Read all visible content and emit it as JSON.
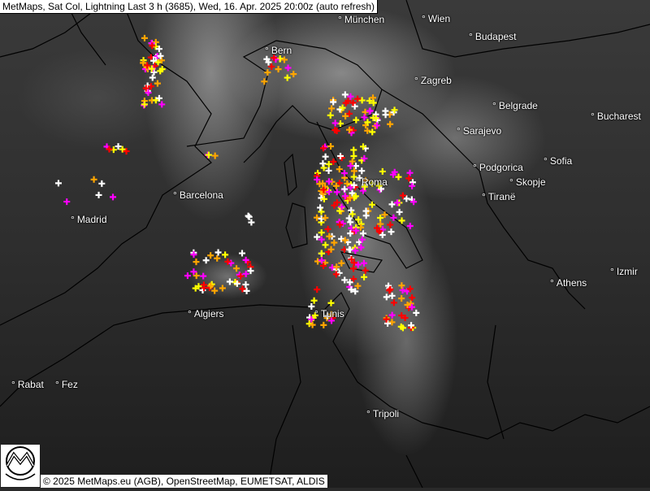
{
  "title": "MetMaps, Sat Col, Lightning Last 3 h (3685), Wed, 16. Apr. 2025 20:00z (auto refresh)",
  "copyright": "© 2025 MetMaps.eu (AGB), OpenStreetMap, EUMETSAT, ALDIS",
  "logo_text": "METMAPS",
  "lightning_colors": [
    "#ffffff",
    "#ffff00",
    "#ffa500",
    "#ff0000",
    "#ff00ff"
  ],
  "cities": [
    {
      "name": "München"
    },
    {
      "name": "Wien"
    },
    {
      "name": "Bern"
    },
    {
      "name": "Budapest"
    },
    {
      "name": "Zagreb"
    },
    {
      "name": "Belgrade"
    },
    {
      "name": "Bucharest"
    },
    {
      "name": "Sarajevo"
    },
    {
      "name": "Sofia"
    },
    {
      "name": "Podgorica"
    },
    {
      "name": "Skopje"
    },
    {
      "name": "Tiranë"
    },
    {
      "name": "Roma"
    },
    {
      "name": "Barcelona"
    },
    {
      "name": "Madrid"
    },
    {
      "name": "Athens"
    },
    {
      "name": "Izmir"
    },
    {
      "name": "Algiers"
    },
    {
      "name": "Tunis"
    },
    {
      "name": "Tripoli"
    },
    {
      "name": "Rabat"
    },
    {
      "name": "Fez"
    }
  ]
}
